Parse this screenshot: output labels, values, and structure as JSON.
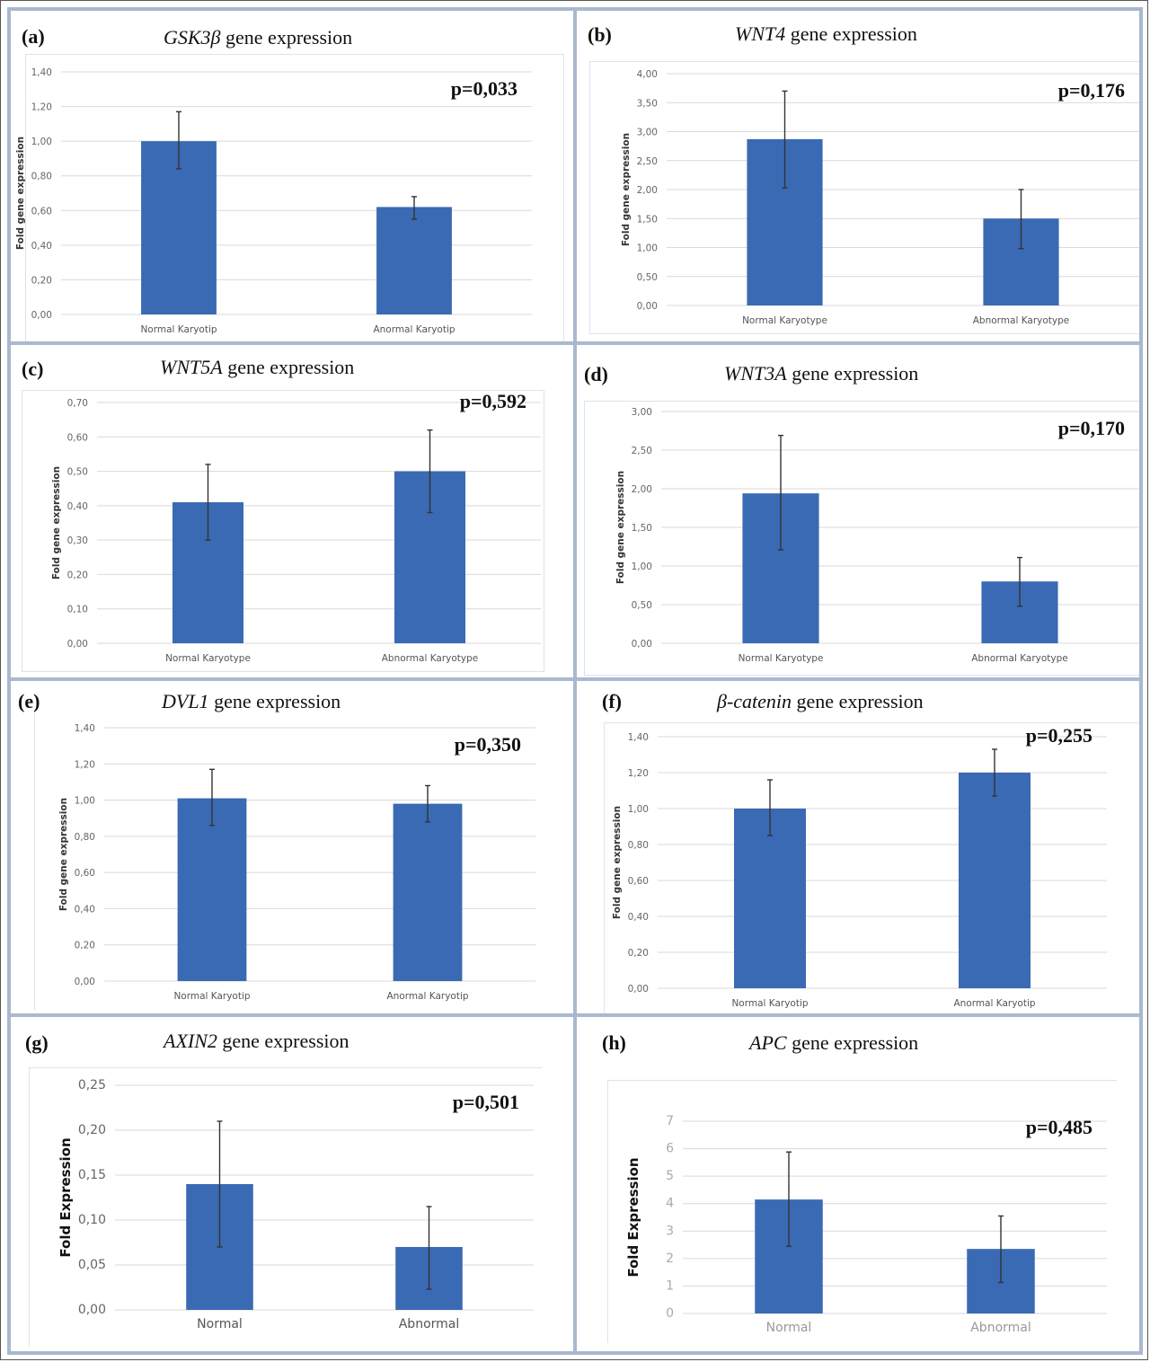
{
  "figure": {
    "bar_color": "#3a6ab4",
    "grid_color": "#d9d9d9",
    "error_color": "#333333"
  },
  "chart_data": [
    {
      "type": "bar",
      "panel": "(a)",
      "gene": "GSK3β",
      "title_suffix": "gene expression",
      "ylabel": "Fold gene expression",
      "categories": [
        "Normal Karyotip",
        "Anormal Karyotip"
      ],
      "values": [
        1.0,
        0.62
      ],
      "errors_upper": [
        1.17,
        0.68
      ],
      "errors_lower": [
        0.84,
        0.55
      ],
      "ylim": [
        0,
        1.4
      ],
      "yticks": [
        "0,00",
        "0,20",
        "0,40",
        "0,60",
        "0,80",
        "1,00",
        "1,20",
        "1,40"
      ],
      "ytick_values": [
        0,
        0.2,
        0.4,
        0.6,
        0.8,
        1.0,
        1.2,
        1.4
      ],
      "p_value": "p=0,033",
      "grid": true
    },
    {
      "type": "bar",
      "panel": "(b)",
      "gene": "WNT4",
      "title_suffix": "gene expression",
      "ylabel": "Fold gene expression",
      "categories": [
        "Normal Karyotype",
        "Abnormal Karyotype"
      ],
      "values": [
        2.87,
        1.5
      ],
      "errors_upper": [
        3.7,
        2.0
      ],
      "errors_lower": [
        2.03,
        0.98
      ],
      "ylim": [
        0,
        4.0
      ],
      "yticks": [
        "0,00",
        "0,50",
        "1,00",
        "1,50",
        "2,00",
        "2,50",
        "3,00",
        "3,50",
        "4,00"
      ],
      "ytick_values": [
        0,
        0.5,
        1.0,
        1.5,
        2.0,
        2.5,
        3.0,
        3.5,
        4.0
      ],
      "p_value": "p=0,176",
      "grid": true
    },
    {
      "type": "bar",
      "panel": "(c)",
      "gene": "WNT5A",
      "title_suffix": "gene expression",
      "ylabel": "Fold gene expression",
      "categories": [
        "Normal Karyotype",
        "Abnormal Karyotype"
      ],
      "values": [
        0.41,
        0.5
      ],
      "errors_upper": [
        0.52,
        0.62
      ],
      "errors_lower": [
        0.3,
        0.38
      ],
      "ylim": [
        0,
        0.7
      ],
      "yticks": [
        "0,00",
        "0,10",
        "0,20",
        "0,30",
        "0,40",
        "0,50",
        "0,60",
        "0,70"
      ],
      "ytick_values": [
        0,
        0.1,
        0.2,
        0.3,
        0.4,
        0.5,
        0.6,
        0.7
      ],
      "p_value": "p=0,592",
      "grid": true
    },
    {
      "type": "bar",
      "panel": "(d)",
      "gene": "WNT3A",
      "title_suffix": "gene expression",
      "ylabel": "Fold gene expression",
      "categories": [
        "Normal Karyotype",
        "Abnormal Karyotype"
      ],
      "values": [
        1.94,
        0.8
      ],
      "errors_upper": [
        2.69,
        1.11
      ],
      "errors_lower": [
        1.21,
        0.48
      ],
      "ylim": [
        0,
        3.0
      ],
      "yticks": [
        "0,00",
        "0,50",
        "1,00",
        "1,50",
        "2,00",
        "2,50",
        "3,00"
      ],
      "ytick_values": [
        0,
        0.5,
        1.0,
        1.5,
        2.0,
        2.5,
        3.0
      ],
      "p_value": "p=0,170",
      "grid": true
    },
    {
      "type": "bar",
      "panel": "(e)",
      "gene": "DVL1",
      "title_suffix": "gene expression",
      "ylabel": "Fold gene expression",
      "categories": [
        "Normal Karyotip",
        "Anormal Karyotip"
      ],
      "values": [
        1.01,
        0.98
      ],
      "errors_upper": [
        1.17,
        1.08
      ],
      "errors_lower": [
        0.86,
        0.88
      ],
      "ylim": [
        0,
        1.4
      ],
      "yticks": [
        "0,00",
        "0,20",
        "0,40",
        "0,60",
        "0,80",
        "1,00",
        "1,20",
        "1,40"
      ],
      "ytick_values": [
        0,
        0.2,
        0.4,
        0.6,
        0.8,
        1.0,
        1.2,
        1.4
      ],
      "p_value": "p=0,350",
      "grid": true
    },
    {
      "type": "bar",
      "panel": "(f)",
      "gene": "β-catenin",
      "title_suffix": "gene expression",
      "ylabel": "Fold gene expression",
      "categories": [
        "Normal Karyotip",
        "Anormal Karyotip"
      ],
      "values": [
        1.0,
        1.2
      ],
      "errors_upper": [
        1.16,
        1.33
      ],
      "errors_lower": [
        0.85,
        1.07
      ],
      "ylim": [
        0,
        1.4
      ],
      "yticks": [
        "0,00",
        "0,20",
        "0,40",
        "0,60",
        "0,80",
        "1,00",
        "1,20",
        "1,40"
      ],
      "ytick_values": [
        0,
        0.2,
        0.4,
        0.6,
        0.8,
        1.0,
        1.2,
        1.4
      ],
      "p_value": "p=0,255",
      "grid": true
    },
    {
      "type": "bar",
      "panel": "(g)",
      "gene": "AXIN2",
      "title_suffix": "gene expression",
      "ylabel": "Fold Expression",
      "categories": [
        "Normal",
        "Abnormal"
      ],
      "values": [
        0.14,
        0.07
      ],
      "errors_upper": [
        0.21,
        0.115
      ],
      "errors_lower": [
        0.07,
        0.023
      ],
      "ylim": [
        0,
        0.25
      ],
      "yticks": [
        "0,00",
        "0,05",
        "0,10",
        "0,15",
        "0,20",
        "0,25"
      ],
      "ytick_values": [
        0,
        0.05,
        0.1,
        0.15,
        0.2,
        0.25
      ],
      "p_value": "p=0,501",
      "grid": true
    },
    {
      "type": "bar",
      "panel": "(h)",
      "gene": "APC",
      "title_suffix": "gene expression",
      "ylabel": "Fold Expression",
      "categories": [
        "Normal",
        "Abnormal"
      ],
      "values": [
        4.15,
        2.35
      ],
      "errors_upper": [
        5.88,
        3.55
      ],
      "errors_lower": [
        2.45,
        1.13
      ],
      "ylim": [
        0,
        7
      ],
      "yticks": [
        "0",
        "1",
        "2",
        "3",
        "4",
        "5",
        "6",
        "7"
      ],
      "ytick_values": [
        0,
        1,
        2,
        3,
        4,
        5,
        6,
        7
      ],
      "p_value": "p=0,485",
      "grid": true
    }
  ]
}
